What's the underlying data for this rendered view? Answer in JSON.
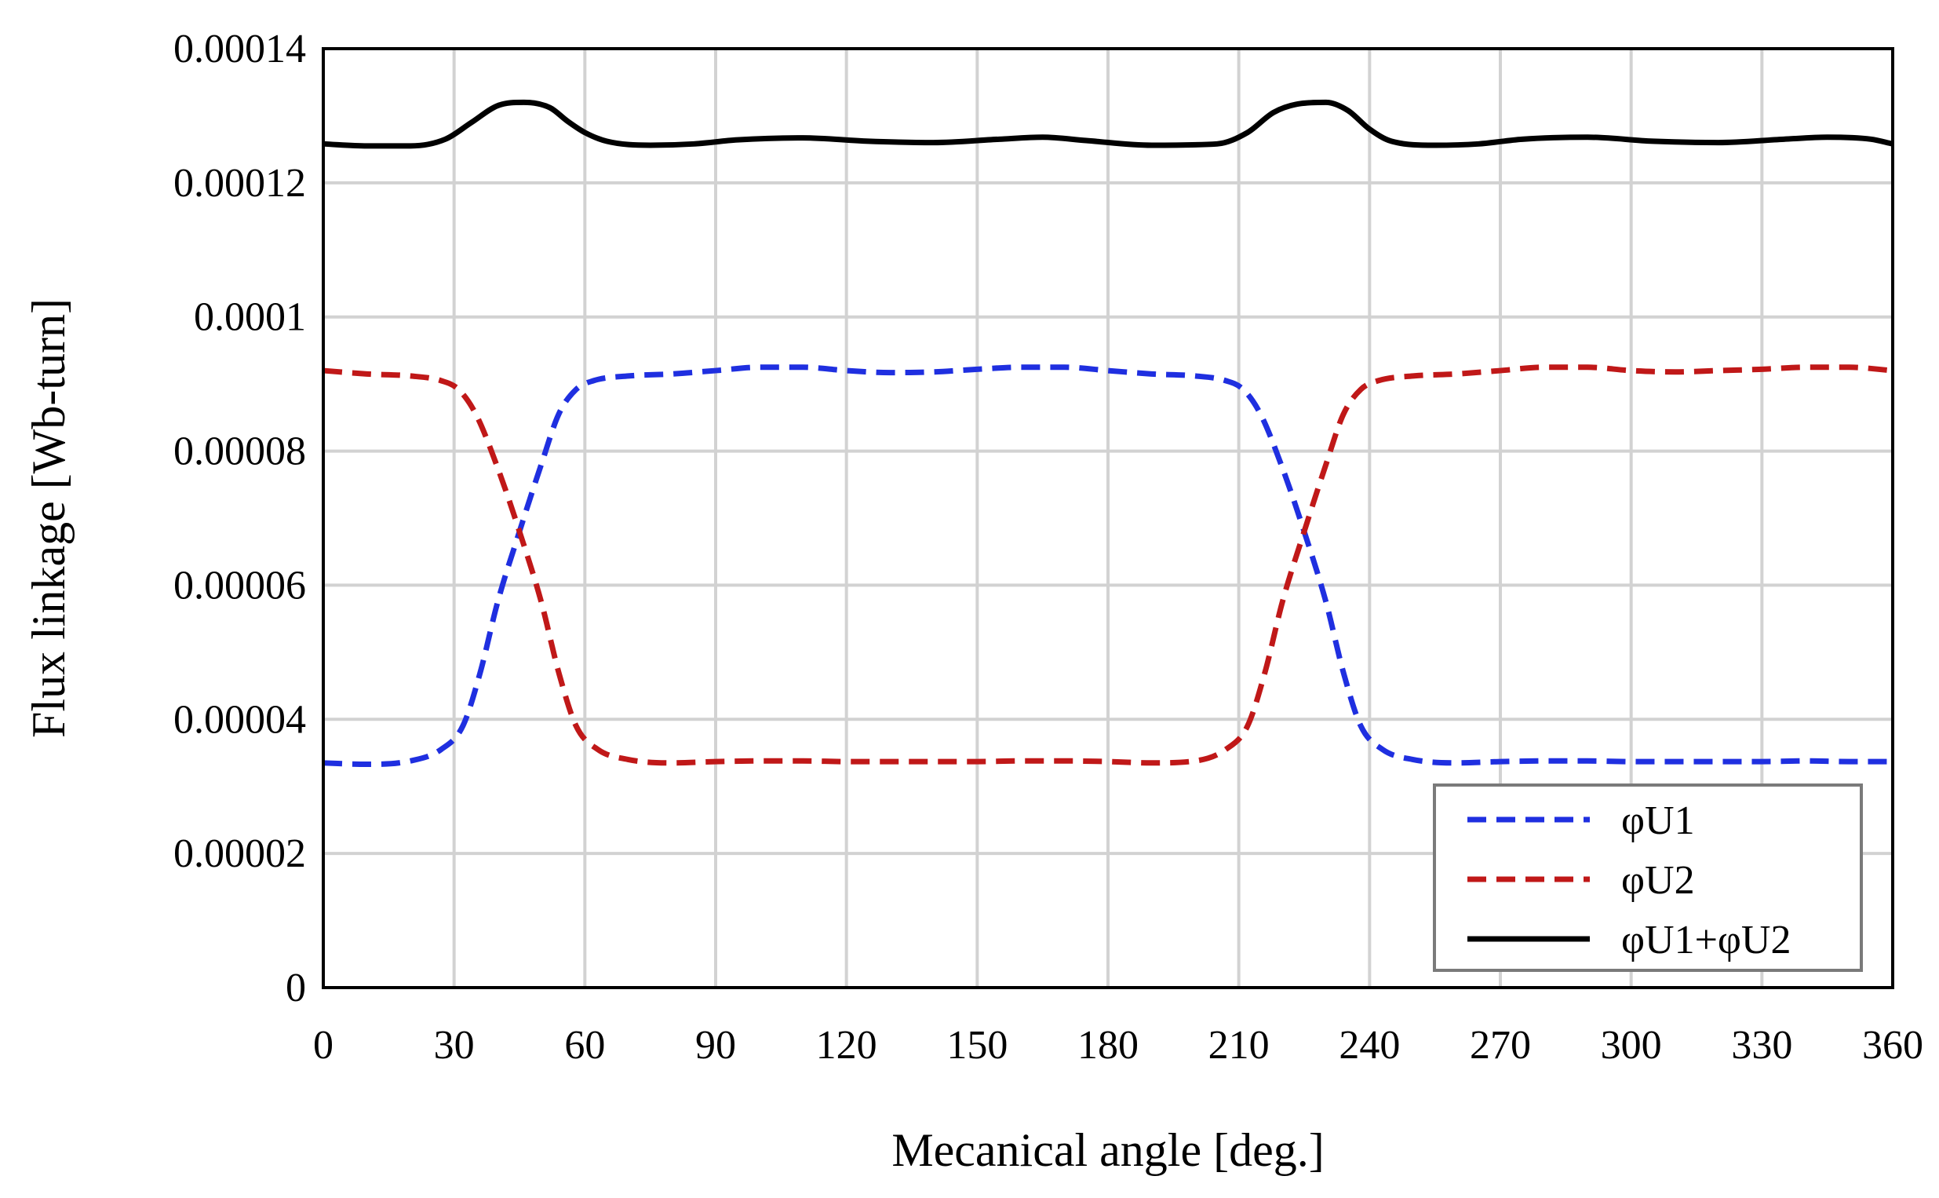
{
  "chart_data": {
    "type": "line",
    "title": "",
    "xlabel": "Mecanical angle [deg.]",
    "ylabel": "Flux linkage [Wb-turn]",
    "xlim": [
      0,
      360
    ],
    "ylim": [
      0,
      0.00014
    ],
    "grid": true,
    "legend_position": "bottom-right",
    "x_ticks": [
      0,
      30,
      60,
      90,
      120,
      150,
      180,
      210,
      240,
      270,
      300,
      330,
      360
    ],
    "x_tick_labels": [
      "0",
      "30",
      "60",
      "90",
      "120",
      "150",
      "180",
      "210",
      "240",
      "270",
      "300",
      "330",
      "360"
    ],
    "y_ticks": [
      0,
      2e-05,
      4e-05,
      6e-05,
      8e-05,
      0.0001,
      0.00012,
      0.00014
    ],
    "y_tick_labels": [
      "0",
      "0.00002",
      "0.00004",
      "0.00006",
      "0.00008",
      "0.0001",
      "0.00012",
      "0.00014"
    ],
    "series": [
      {
        "name": "φU1",
        "color": "#1f2fe0",
        "style": "dashed",
        "points": [
          [
            0,
            3.35e-05
          ],
          [
            10,
            3.33e-05
          ],
          [
            20,
            3.38e-05
          ],
          [
            27,
            3.55e-05
          ],
          [
            32,
            3.9e-05
          ],
          [
            36,
            4.7e-05
          ],
          [
            40,
            5.75e-05
          ],
          [
            45,
            6.8e-05
          ],
          [
            50,
            7.8e-05
          ],
          [
            54,
            8.55e-05
          ],
          [
            58,
            8.92e-05
          ],
          [
            62,
            9.05e-05
          ],
          [
            70,
            9.12e-05
          ],
          [
            80,
            9.15e-05
          ],
          [
            90,
            9.2e-05
          ],
          [
            100,
            9.25e-05
          ],
          [
            110,
            9.25e-05
          ],
          [
            120,
            9.2e-05
          ],
          [
            130,
            9.17e-05
          ],
          [
            140,
            9.18e-05
          ],
          [
            150,
            9.22e-05
          ],
          [
            160,
            9.25e-05
          ],
          [
            170,
            9.25e-05
          ],
          [
            180,
            9.2e-05
          ],
          [
            190,
            9.15e-05
          ],
          [
            200,
            9.12e-05
          ],
          [
            207,
            9.05e-05
          ],
          [
            211,
            8.92e-05
          ],
          [
            215,
            8.55e-05
          ],
          [
            220,
            7.75e-05
          ],
          [
            225,
            6.8e-05
          ],
          [
            230,
            5.75e-05
          ],
          [
            234,
            4.7e-05
          ],
          [
            238,
            3.9e-05
          ],
          [
            243,
            3.55e-05
          ],
          [
            250,
            3.4e-05
          ],
          [
            260,
            3.35e-05
          ],
          [
            270,
            3.37e-05
          ],
          [
            280,
            3.38e-05
          ],
          [
            290,
            3.38e-05
          ],
          [
            300,
            3.37e-05
          ],
          [
            310,
            3.37e-05
          ],
          [
            320,
            3.37e-05
          ],
          [
            330,
            3.37e-05
          ],
          [
            340,
            3.38e-05
          ],
          [
            350,
            3.37e-05
          ],
          [
            360,
            3.37e-05
          ]
        ]
      },
      {
        "name": "φU2",
        "color": "#c01818",
        "style": "dashed",
        "points": [
          [
            0,
            9.2e-05
          ],
          [
            10,
            9.15e-05
          ],
          [
            20,
            9.12e-05
          ],
          [
            27,
            9.05e-05
          ],
          [
            31,
            8.92e-05
          ],
          [
            35,
            8.55e-05
          ],
          [
            40,
            7.75e-05
          ],
          [
            45,
            6.8e-05
          ],
          [
            50,
            5.75e-05
          ],
          [
            54,
            4.7e-05
          ],
          [
            58,
            3.9e-05
          ],
          [
            63,
            3.55e-05
          ],
          [
            70,
            3.4e-05
          ],
          [
            80,
            3.35e-05
          ],
          [
            90,
            3.37e-05
          ],
          [
            100,
            3.38e-05
          ],
          [
            110,
            3.38e-05
          ],
          [
            120,
            3.37e-05
          ],
          [
            130,
            3.37e-05
          ],
          [
            140,
            3.37e-05
          ],
          [
            150,
            3.37e-05
          ],
          [
            160,
            3.38e-05
          ],
          [
            170,
            3.38e-05
          ],
          [
            180,
            3.37e-05
          ],
          [
            190,
            3.35e-05
          ],
          [
            200,
            3.38e-05
          ],
          [
            207,
            3.55e-05
          ],
          [
            212,
            3.9e-05
          ],
          [
            216,
            4.7e-05
          ],
          [
            220,
            5.75e-05
          ],
          [
            225,
            6.8e-05
          ],
          [
            230,
            7.8e-05
          ],
          [
            234,
            8.55e-05
          ],
          [
            238,
            8.92e-05
          ],
          [
            242,
            9.05e-05
          ],
          [
            250,
            9.12e-05
          ],
          [
            260,
            9.15e-05
          ],
          [
            270,
            9.2e-05
          ],
          [
            280,
            9.25e-05
          ],
          [
            290,
            9.25e-05
          ],
          [
            300,
            9.2e-05
          ],
          [
            310,
            9.18e-05
          ],
          [
            320,
            9.2e-05
          ],
          [
            330,
            9.22e-05
          ],
          [
            340,
            9.25e-05
          ],
          [
            350,
            9.25e-05
          ],
          [
            360,
            9.2e-05
          ]
        ]
      },
      {
        "name": "φU1+φU2",
        "color": "#000000",
        "style": "solid",
        "points": [
          [
            0,
            0.0001258
          ],
          [
            10,
            0.0001255
          ],
          [
            20,
            0.0001255
          ],
          [
            28,
            0.0001265
          ],
          [
            34,
            0.000129
          ],
          [
            40,
            0.0001315
          ],
          [
            46,
            0.000132
          ],
          [
            52,
            0.0001312
          ],
          [
            56,
            0.0001292
          ],
          [
            60,
            0.0001275
          ],
          [
            65,
            0.0001262
          ],
          [
            75,
            0.0001256
          ],
          [
            85,
            0.0001258
          ],
          [
            95,
            0.0001264
          ],
          [
            110,
            0.0001267
          ],
          [
            125,
            0.0001262
          ],
          [
            140,
            0.000126
          ],
          [
            155,
            0.0001265
          ],
          [
            165,
            0.0001268
          ],
          [
            175,
            0.0001263
          ],
          [
            190,
            0.0001256
          ],
          [
            205,
            0.0001258
          ],
          [
            212,
            0.0001275
          ],
          [
            218,
            0.0001305
          ],
          [
            224,
            0.0001318
          ],
          [
            230,
            0.000132
          ],
          [
            235,
            0.0001308
          ],
          [
            240,
            0.000128
          ],
          [
            245,
            0.0001262
          ],
          [
            255,
            0.0001256
          ],
          [
            265,
            0.0001258
          ],
          [
            275,
            0.0001265
          ],
          [
            290,
            0.0001268
          ],
          [
            305,
            0.0001262
          ],
          [
            320,
            0.000126
          ],
          [
            335,
            0.0001265
          ],
          [
            345,
            0.0001268
          ],
          [
            355,
            0.0001265
          ],
          [
            360,
            0.0001258
          ]
        ]
      }
    ]
  }
}
